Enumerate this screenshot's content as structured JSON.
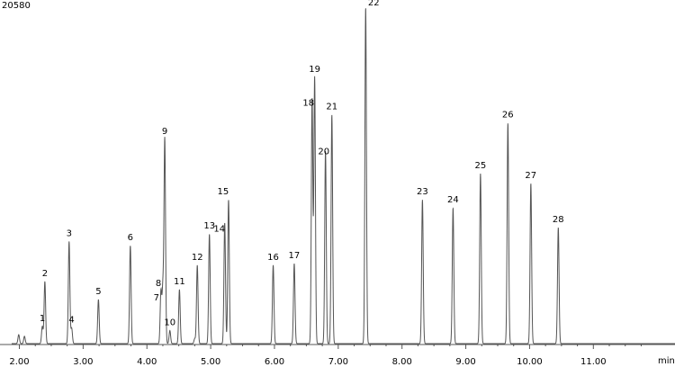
{
  "chart_data": {
    "type": "line",
    "title": "",
    "xlabel": "min",
    "ylabel": "",
    "y_max_label": "20580",
    "xlim": [
      1.88,
      12.28
    ],
    "ylim": [
      0,
      20580
    ],
    "grid": false,
    "legend": "none",
    "line_color": "#555555",
    "x_ticks": [
      "2.00",
      "3.00",
      "4.00",
      "5.00",
      "6.00",
      "7.00",
      "8.00",
      "9.00",
      "10.00",
      "11.00"
    ],
    "peaks": [
      {
        "label": "1",
        "rt": 2.36,
        "height": 1050
      },
      {
        "label": "2",
        "rt": 2.4,
        "height": 3800
      },
      {
        "label": "3",
        "rt": 2.78,
        "height": 6250
      },
      {
        "label": "4",
        "rt": 2.82,
        "height": 950
      },
      {
        "label": "5",
        "rt": 3.24,
        "height": 2700
      },
      {
        "label": "6",
        "rt": 3.74,
        "height": 6000
      },
      {
        "label": "7",
        "rt": 4.22,
        "height": 3200
      },
      {
        "label": "8",
        "rt": 4.25,
        "height": 3300
      },
      {
        "label": "9",
        "rt": 4.28,
        "height": 12500
      },
      {
        "label": "10",
        "rt": 4.36,
        "height": 800
      },
      {
        "label": "11",
        "rt": 4.51,
        "height": 3300
      },
      {
        "label": "12",
        "rt": 4.79,
        "height": 4800
      },
      {
        "label": "13",
        "rt": 4.98,
        "height": 6700
      },
      {
        "label": "14",
        "rt": 5.22,
        "height": 7400
      },
      {
        "label": "15",
        "rt": 5.28,
        "height": 8800
      },
      {
        "label": "16",
        "rt": 5.98,
        "height": 4800
      },
      {
        "label": "17",
        "rt": 6.31,
        "height": 4900
      },
      {
        "label": "18",
        "rt": 6.59,
        "height": 15000
      },
      {
        "label": "19",
        "rt": 6.63,
        "height": 16300
      },
      {
        "label": "20",
        "rt": 6.8,
        "height": 11800
      },
      {
        "label": "21",
        "rt": 6.9,
        "height": 14000
      },
      {
        "label": "22",
        "rt": 7.43,
        "height": 20580
      },
      {
        "label": "23",
        "rt": 8.32,
        "height": 8800
      },
      {
        "label": "24",
        "rt": 8.8,
        "height": 8300
      },
      {
        "label": "25",
        "rt": 9.23,
        "height": 10400
      },
      {
        "label": "26",
        "rt": 9.66,
        "height": 13500
      },
      {
        "label": "27",
        "rt": 10.02,
        "height": 9800
      },
      {
        "label": "28",
        "rt": 10.45,
        "height": 7100
      }
    ],
    "minor_peaks": [
      {
        "rt": 1.99,
        "height": 550
      },
      {
        "rt": 2.08,
        "height": 450
      },
      {
        "rt": 4.75,
        "height": 300
      }
    ]
  }
}
